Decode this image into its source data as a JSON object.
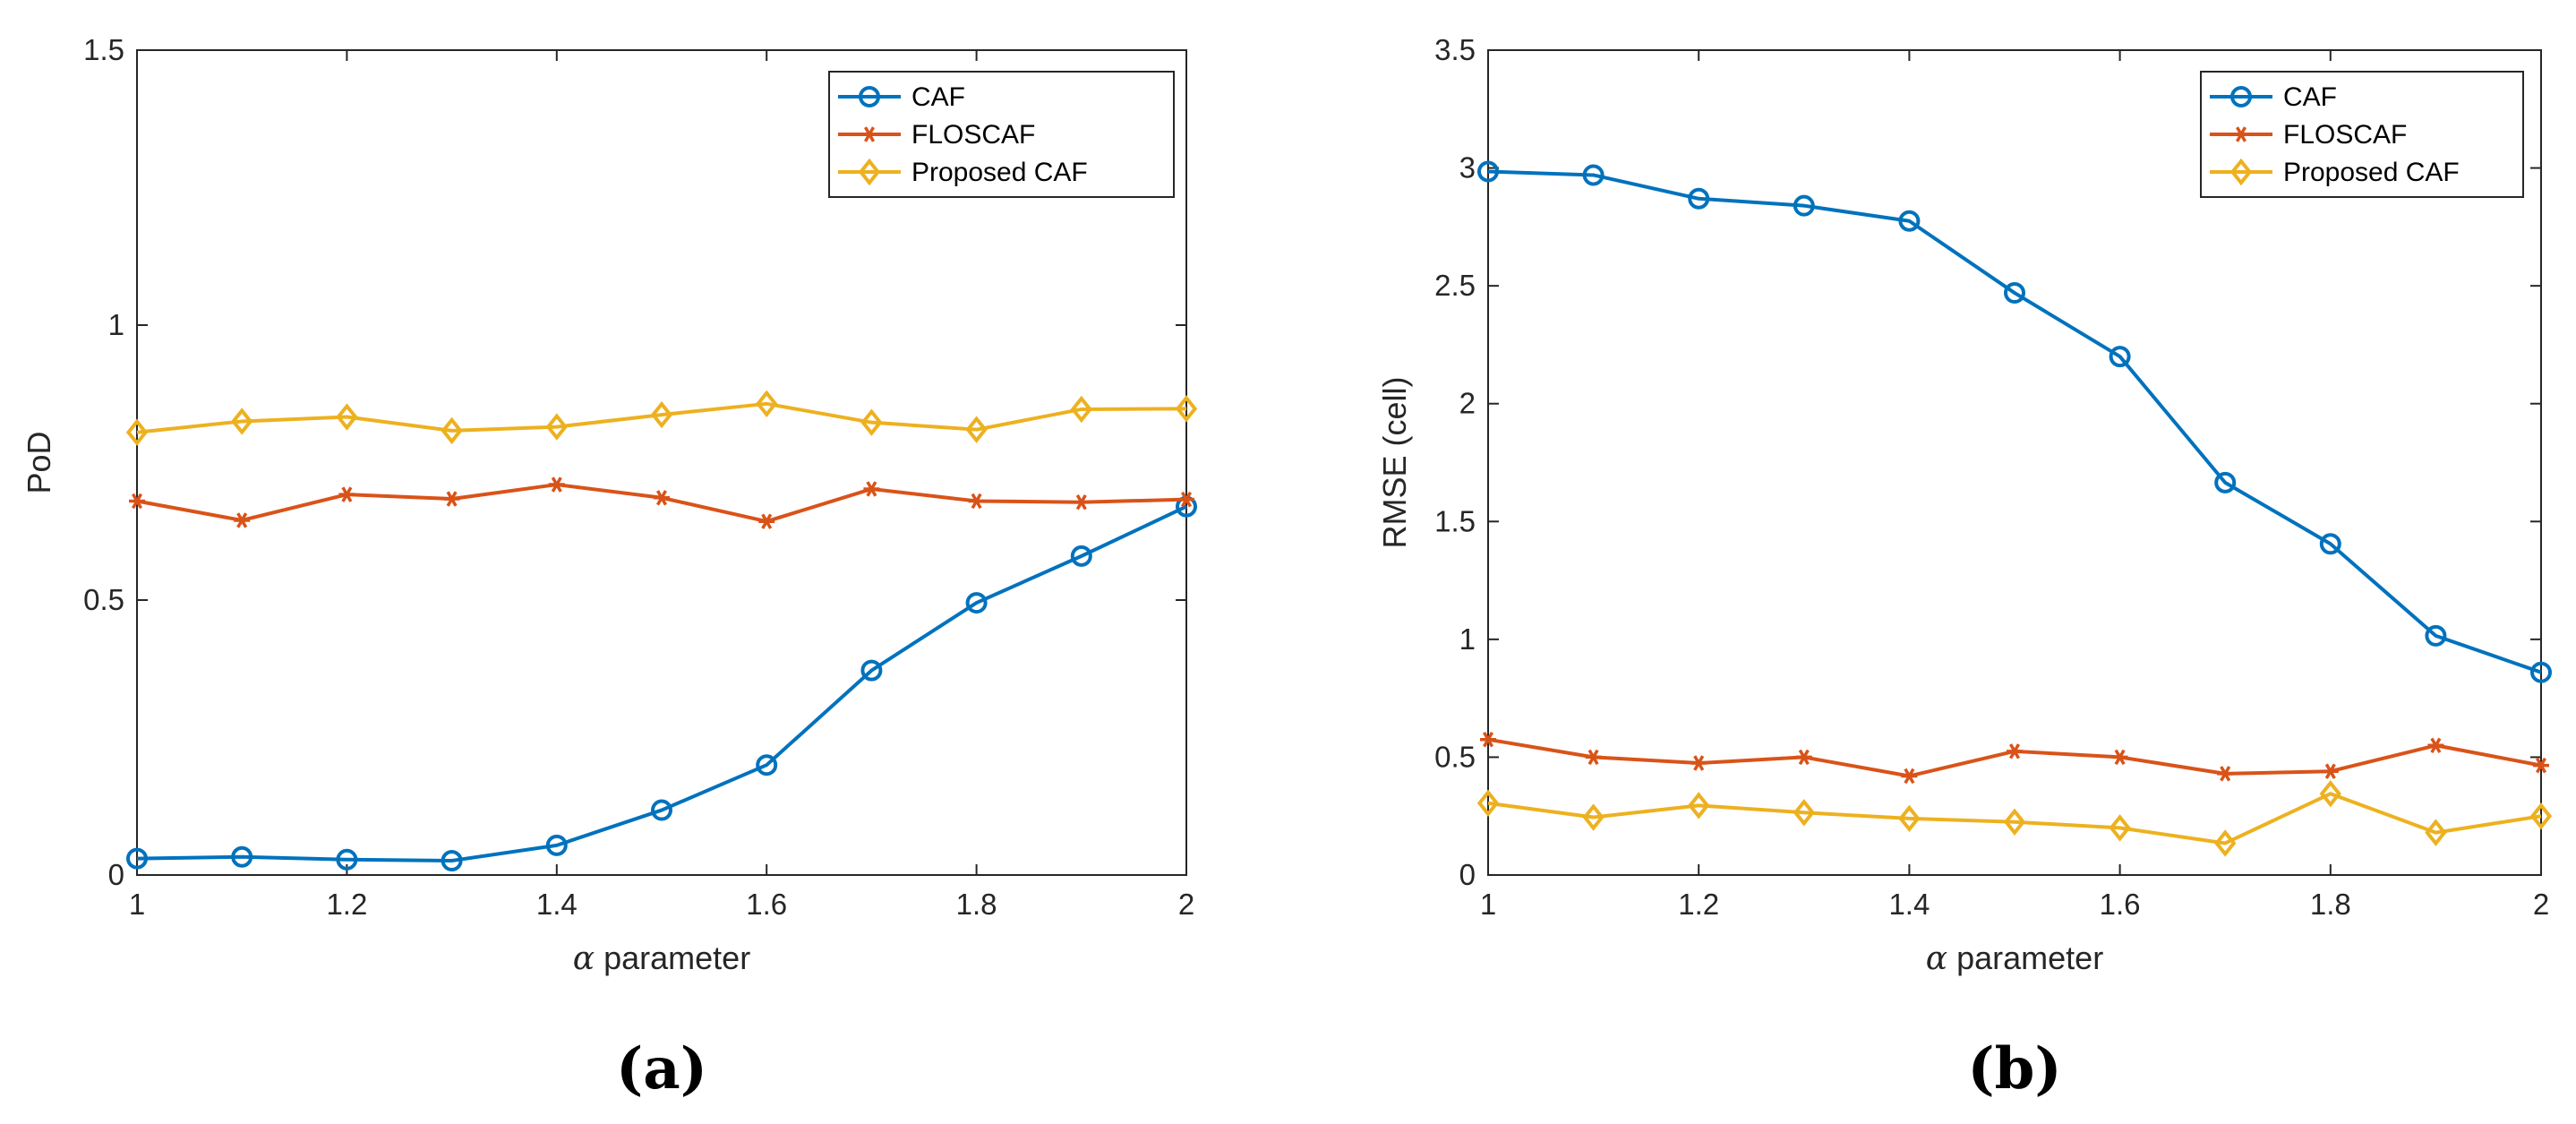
{
  "chart_data": [
    {
      "type": "line",
      "panel_label": "(a)",
      "title": "",
      "xlabel_symbol": "α",
      "xlabel_text": " parameter",
      "ylabel": "PoD",
      "xlim": [
        1,
        2
      ],
      "ylim": [
        0,
        1.5
      ],
      "xticks": [
        1,
        1.2,
        1.4,
        1.6,
        1.8,
        2
      ],
      "xtick_labels": [
        "1",
        "1.2",
        "1.4",
        "1.6",
        "1.8",
        "2"
      ],
      "yticks": [
        0,
        0.5,
        1,
        1.5
      ],
      "ytick_labels": [
        "0",
        "0.5",
        "1",
        "1.5"
      ],
      "legend_position": "top-right",
      "grid": false,
      "x": [
        1,
        1.1,
        1.2,
        1.3,
        1.4,
        1.5,
        1.6,
        1.7,
        1.8,
        1.9,
        2
      ],
      "series": [
        {
          "name": "CAF",
          "color": "#0072BD",
          "marker": "circle",
          "values": [
            0.03,
            0.033,
            0.028,
            0.026,
            0.054,
            0.118,
            0.2,
            0.372,
            0.495,
            0.58,
            0.67
          ]
        },
        {
          "name": "FLOSCAF",
          "color": "#D95319",
          "marker": "asterisk",
          "values": [
            0.68,
            0.645,
            0.692,
            0.684,
            0.71,
            0.686,
            0.643,
            0.702,
            0.68,
            0.678,
            0.683
          ]
        },
        {
          "name": "Proposed CAF",
          "color": "#EDB120",
          "marker": "diamond",
          "values": [
            0.805,
            0.825,
            0.833,
            0.808,
            0.815,
            0.837,
            0.857,
            0.823,
            0.81,
            0.847,
            0.848
          ]
        }
      ]
    },
    {
      "type": "line",
      "panel_label": "(b)",
      "title": "",
      "xlabel_symbol": "α",
      "xlabel_text": " parameter",
      "ylabel": "RMSE (cell)",
      "xlim": [
        1,
        2
      ],
      "ylim": [
        0,
        3.5
      ],
      "xticks": [
        1,
        1.2,
        1.4,
        1.6,
        1.8,
        2
      ],
      "xtick_labels": [
        "1",
        "1.2",
        "1.4",
        "1.6",
        "1.8",
        "2"
      ],
      "yticks": [
        0,
        0.5,
        1,
        1.5,
        2,
        2.5,
        3,
        3.5
      ],
      "ytick_labels": [
        "0",
        "0.5",
        "1",
        "1.5",
        "2",
        "2.5",
        "3",
        "3.5"
      ],
      "legend_position": "top-right",
      "grid": false,
      "x": [
        1,
        1.1,
        1.2,
        1.3,
        1.4,
        1.5,
        1.6,
        1.7,
        1.8,
        1.9,
        2
      ],
      "series": [
        {
          "name": "CAF",
          "color": "#0072BD",
          "marker": "circle",
          "values": [
            2.985,
            2.97,
            2.87,
            2.84,
            2.775,
            2.47,
            2.2,
            1.665,
            1.405,
            1.015,
            0.86
          ]
        },
        {
          "name": "FLOSCAF",
          "color": "#D95319",
          "marker": "asterisk",
          "values": [
            0.575,
            0.5,
            0.475,
            0.5,
            0.42,
            0.525,
            0.5,
            0.43,
            0.44,
            0.55,
            0.465
          ]
        },
        {
          "name": "Proposed CAF",
          "color": "#EDB120",
          "marker": "diamond",
          "values": [
            0.305,
            0.245,
            0.295,
            0.265,
            0.24,
            0.225,
            0.2,
            0.135,
            0.345,
            0.18,
            0.25
          ]
        }
      ]
    }
  ]
}
